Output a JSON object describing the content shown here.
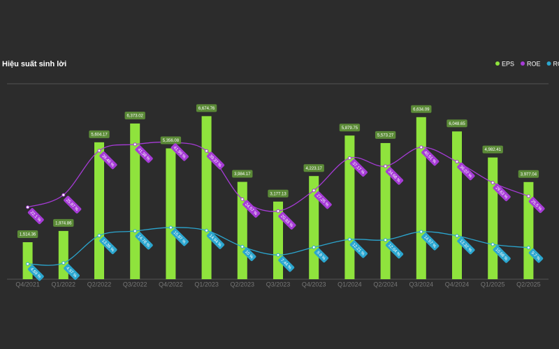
{
  "chart_data": {
    "type": "bar-line",
    "title": "Hiệu suất sinh lời",
    "categories": [
      "Q4/2021",
      "Q1/2022",
      "Q2/2022",
      "Q3/2022",
      "Q4/2022",
      "Q1/2023",
      "Q2/2023",
      "Q3/2023",
      "Q4/2023",
      "Q1/2024",
      "Q2/2024",
      "Q3/2024",
      "Q4/2024",
      "Q1/2025",
      "Q2/2025"
    ],
    "series": [
      {
        "name": "EPS",
        "type": "bar",
        "color": "#8fe33d",
        "values": [
          1514.36,
          1974.86,
          5604.17,
          6373.02,
          5356.08,
          6674.76,
          3984.17,
          3177.13,
          4223.17,
          5879.75,
          5573.27,
          6634.09,
          6048.65,
          4982.41,
          3977.04
        ],
        "value_labels": [
          "1,514.36",
          "1,974.86",
          "5,604.17",
          "6,373.02",
          "5,356.08",
          "6,674.76",
          "3,984.17",
          "3,177.13",
          "4,223.17",
          "5,879.75",
          "5,573.27",
          "6,634.09",
          "6,048.65",
          "4,982.41",
          "3,977.04"
        ]
      },
      {
        "name": "ROE",
        "type": "line",
        "axis": "y2",
        "color": "#a63bd6",
        "values": [
          22.1,
          25.87,
          39.46,
          41.38,
          41.99,
          39.37,
          24.57,
          20.93,
          27.25,
          37.17,
          34.68,
          40.51,
          36.07,
          29.63,
          25.5
        ],
        "value_labels": [
          "22.1 %",
          "25.87 %",
          "39.46 %",
          "41.38 %",
          "41.99 %",
          "39.37 %",
          "24.57 %",
          "20.93 %",
          "27.25 %",
          "37.17 %",
          "34.68 %",
          "40.51 %",
          "36.07 %",
          "29.63 %",
          "25.5 %"
        ]
      },
      {
        "name": "ROA",
        "type": "line",
        "axis": "y2",
        "color": "#2ba6cf",
        "values": [
          4.69,
          4.97,
          13.38,
          14.78,
          15.87,
          14.94,
          10,
          7.44,
          9.8,
          12.21,
          12.04,
          14.57,
          13.32,
          10.68,
          9.7
        ],
        "value_labels": [
          "4.69 %",
          "4.97 %",
          "13.38 %",
          "14.78 %",
          "15.87 %",
          "14.94 %",
          "10 %",
          "7.44 %",
          "9.8 %",
          "12.21 %",
          "12.04 %",
          "14.57 %",
          "13.32 %",
          "10.68 %",
          "9.7 %"
        ]
      }
    ],
    "ylim": [
      0,
      8000
    ],
    "y2lim": [
      0,
      60
    ],
    "legend": "top-right"
  }
}
